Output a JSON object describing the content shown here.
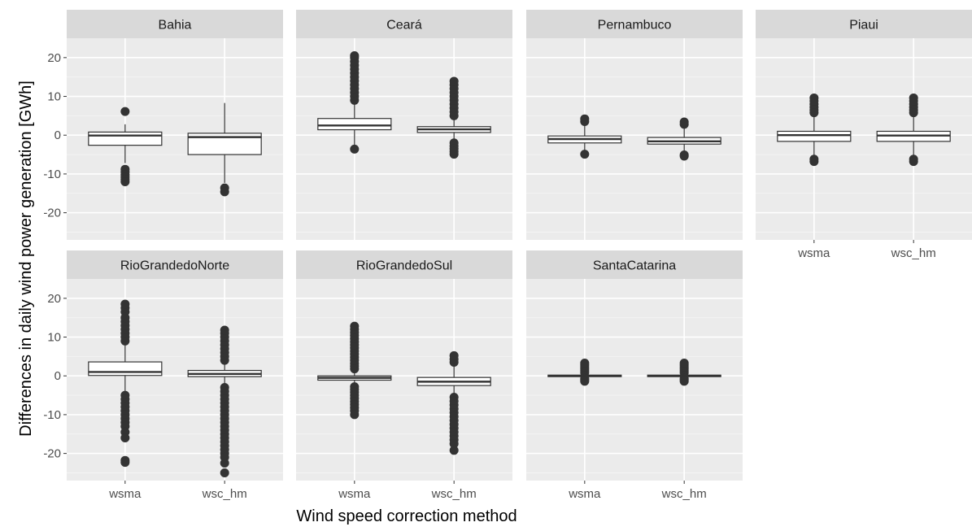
{
  "chart_data": {
    "type": "boxplot",
    "xlabel": "Wind speed correction method",
    "ylabel": "Differences in daily wind power generation [GWh]",
    "categories": [
      "wsma",
      "wsc_hm"
    ],
    "ylim": [
      -27,
      25
    ],
    "yticks": [
      -20,
      -10,
      0,
      10,
      20
    ],
    "grid": true,
    "panels": [
      {
        "name": "Bahia",
        "boxes": [
          {
            "category": "wsma",
            "min": -7.2,
            "q1": -2.6,
            "median": -0.1,
            "q3": 0.8,
            "max": 2.8,
            "outliers": [
              6.1,
              -8.8,
              -9.5,
              -10.2,
              -10.8,
              -11.4,
              -12.0
            ]
          },
          {
            "category": "wsc_hm",
            "min": -12.3,
            "q1": -5.0,
            "median": -0.5,
            "q3": 0.5,
            "max": 8.3,
            "outliers": [
              -13.6,
              -14.6
            ]
          }
        ]
      },
      {
        "name": "Ceará",
        "boxes": [
          {
            "category": "wsma",
            "min": -3.0,
            "q1": 1.4,
            "median": 2.5,
            "q3": 4.3,
            "max": 8.6,
            "outliers": [
              -3.6,
              9.0,
              10.0,
              11.0,
              12.0,
              13.0,
              14.0,
              15.0,
              16.0,
              17.0,
              18.0,
              19.0,
              20.0,
              20.5
            ]
          },
          {
            "category": "wsc_hm",
            "min": -1.0,
            "q1": 0.7,
            "median": 1.5,
            "q3": 2.2,
            "max": 4.4,
            "outliers": [
              -2.0,
              -2.8,
              -3.5,
              -4.2,
              -4.9,
              5.0,
              6.0,
              7.0,
              8.0,
              9.0,
              10.0,
              11.0,
              12.0,
              13.0,
              13.9
            ]
          }
        ]
      },
      {
        "name": "Pernambuco",
        "boxes": [
          {
            "category": "wsma",
            "min": -4.0,
            "q1": -2.0,
            "median": -1.0,
            "q3": -0.2,
            "max": 3.0,
            "outliers": [
              3.5,
              4.2,
              -4.9
            ]
          },
          {
            "category": "wsc_hm",
            "min": -4.0,
            "q1": -2.3,
            "median": -1.6,
            "q3": -0.6,
            "max": 2.0,
            "outliers": [
              2.8,
              3.4,
              -5.1,
              -5.4
            ]
          }
        ]
      },
      {
        "name": "Piaui",
        "boxes": [
          {
            "category": "wsma",
            "min": -5.5,
            "q1": -1.6,
            "median": 0.0,
            "q3": 1.0,
            "max": 5.0,
            "outliers": [
              5.8,
              6.5,
              7.2,
              8.0,
              8.8,
              9.6,
              -6.2,
              -6.8
            ]
          },
          {
            "category": "wsc_hm",
            "min": -5.5,
            "q1": -1.6,
            "median": -0.1,
            "q3": 1.0,
            "max": 5.0,
            "outliers": [
              5.8,
              6.5,
              7.2,
              8.0,
              8.8,
              9.6,
              -6.2,
              -6.8
            ]
          }
        ]
      },
      {
        "name": "RioGrandedoNorte",
        "boxes": [
          {
            "category": "wsma",
            "min": -4.5,
            "q1": 0.1,
            "median": 1.0,
            "q3": 3.6,
            "max": 8.5,
            "outliers": [
              9.0,
              10.0,
              11.0,
              12.0,
              13.0,
              14.0,
              15.0,
              16.5,
              17.5,
              18.5,
              -5.0,
              -6.0,
              -7.0,
              -8.0,
              -9.0,
              -10.0,
              -11.0,
              -12.0,
              -13.0,
              -14.5,
              -16.0,
              -21.8,
              -22.3
            ]
          },
          {
            "category": "wsc_hm",
            "min": -2.0,
            "q1": -0.2,
            "median": 0.5,
            "q3": 1.4,
            "max": 3.5,
            "outliers": [
              4.0,
              5.0,
              6.0,
              7.0,
              8.0,
              9.0,
              10.0,
              11.0,
              11.8,
              -3.0,
              -4.0,
              -5.0,
              -6.0,
              -7.0,
              -8.0,
              -9.0,
              -10.0,
              -11.0,
              -12.0,
              -13.0,
              -14.0,
              -15.0,
              -16.0,
              -17.0,
              -18.0,
              -19.0,
              -20.0,
              -21.0,
              -22.5,
              -25.0
            ]
          }
        ]
      },
      {
        "name": "RioGrandedoSul",
        "boxes": [
          {
            "category": "wsma",
            "min": -2.2,
            "q1": -1.1,
            "median": -0.5,
            "q3": 0.0,
            "max": 1.2,
            "outliers": [
              1.8,
              2.5,
              3.2,
              4.0,
              4.8,
              5.6,
              6.4,
              7.2,
              8.0,
              8.8,
              9.6,
              10.4,
              11.2,
              12.0,
              12.8,
              -2.8,
              -3.5,
              -4.2,
              -5.0,
              -5.8,
              -6.6,
              -7.4,
              -8.2,
              -9.0,
              -10.0
            ]
          },
          {
            "category": "wsc_hm",
            "min": -4.5,
            "q1": -2.5,
            "median": -1.5,
            "q3": -0.4,
            "max": 2.8,
            "outliers": [
              3.5,
              4.3,
              5.2,
              -5.5,
              -6.5,
              -7.5,
              -8.5,
              -9.5,
              -10.5,
              -11.5,
              -12.5,
              -13.5,
              -14.5,
              -15.5,
              -16.5,
              -17.5,
              -19.2
            ]
          }
        ]
      },
      {
        "name": "SantaCatarina",
        "boxes": [
          {
            "category": "wsma",
            "min": -0.4,
            "q1": -0.2,
            "median": 0.0,
            "q3": 0.2,
            "max": 0.4,
            "outliers": [
              0.8,
              1.3,
              1.8,
              2.3,
              2.8,
              3.3,
              -0.7,
              -1.0,
              -1.4
            ]
          },
          {
            "category": "wsc_hm",
            "min": -0.4,
            "q1": -0.2,
            "median": 0.0,
            "q3": 0.2,
            "max": 0.4,
            "outliers": [
              0.8,
              1.3,
              1.8,
              2.3,
              2.8,
              3.3,
              -0.7,
              -1.0,
              -1.4
            ]
          }
        ]
      }
    ]
  }
}
